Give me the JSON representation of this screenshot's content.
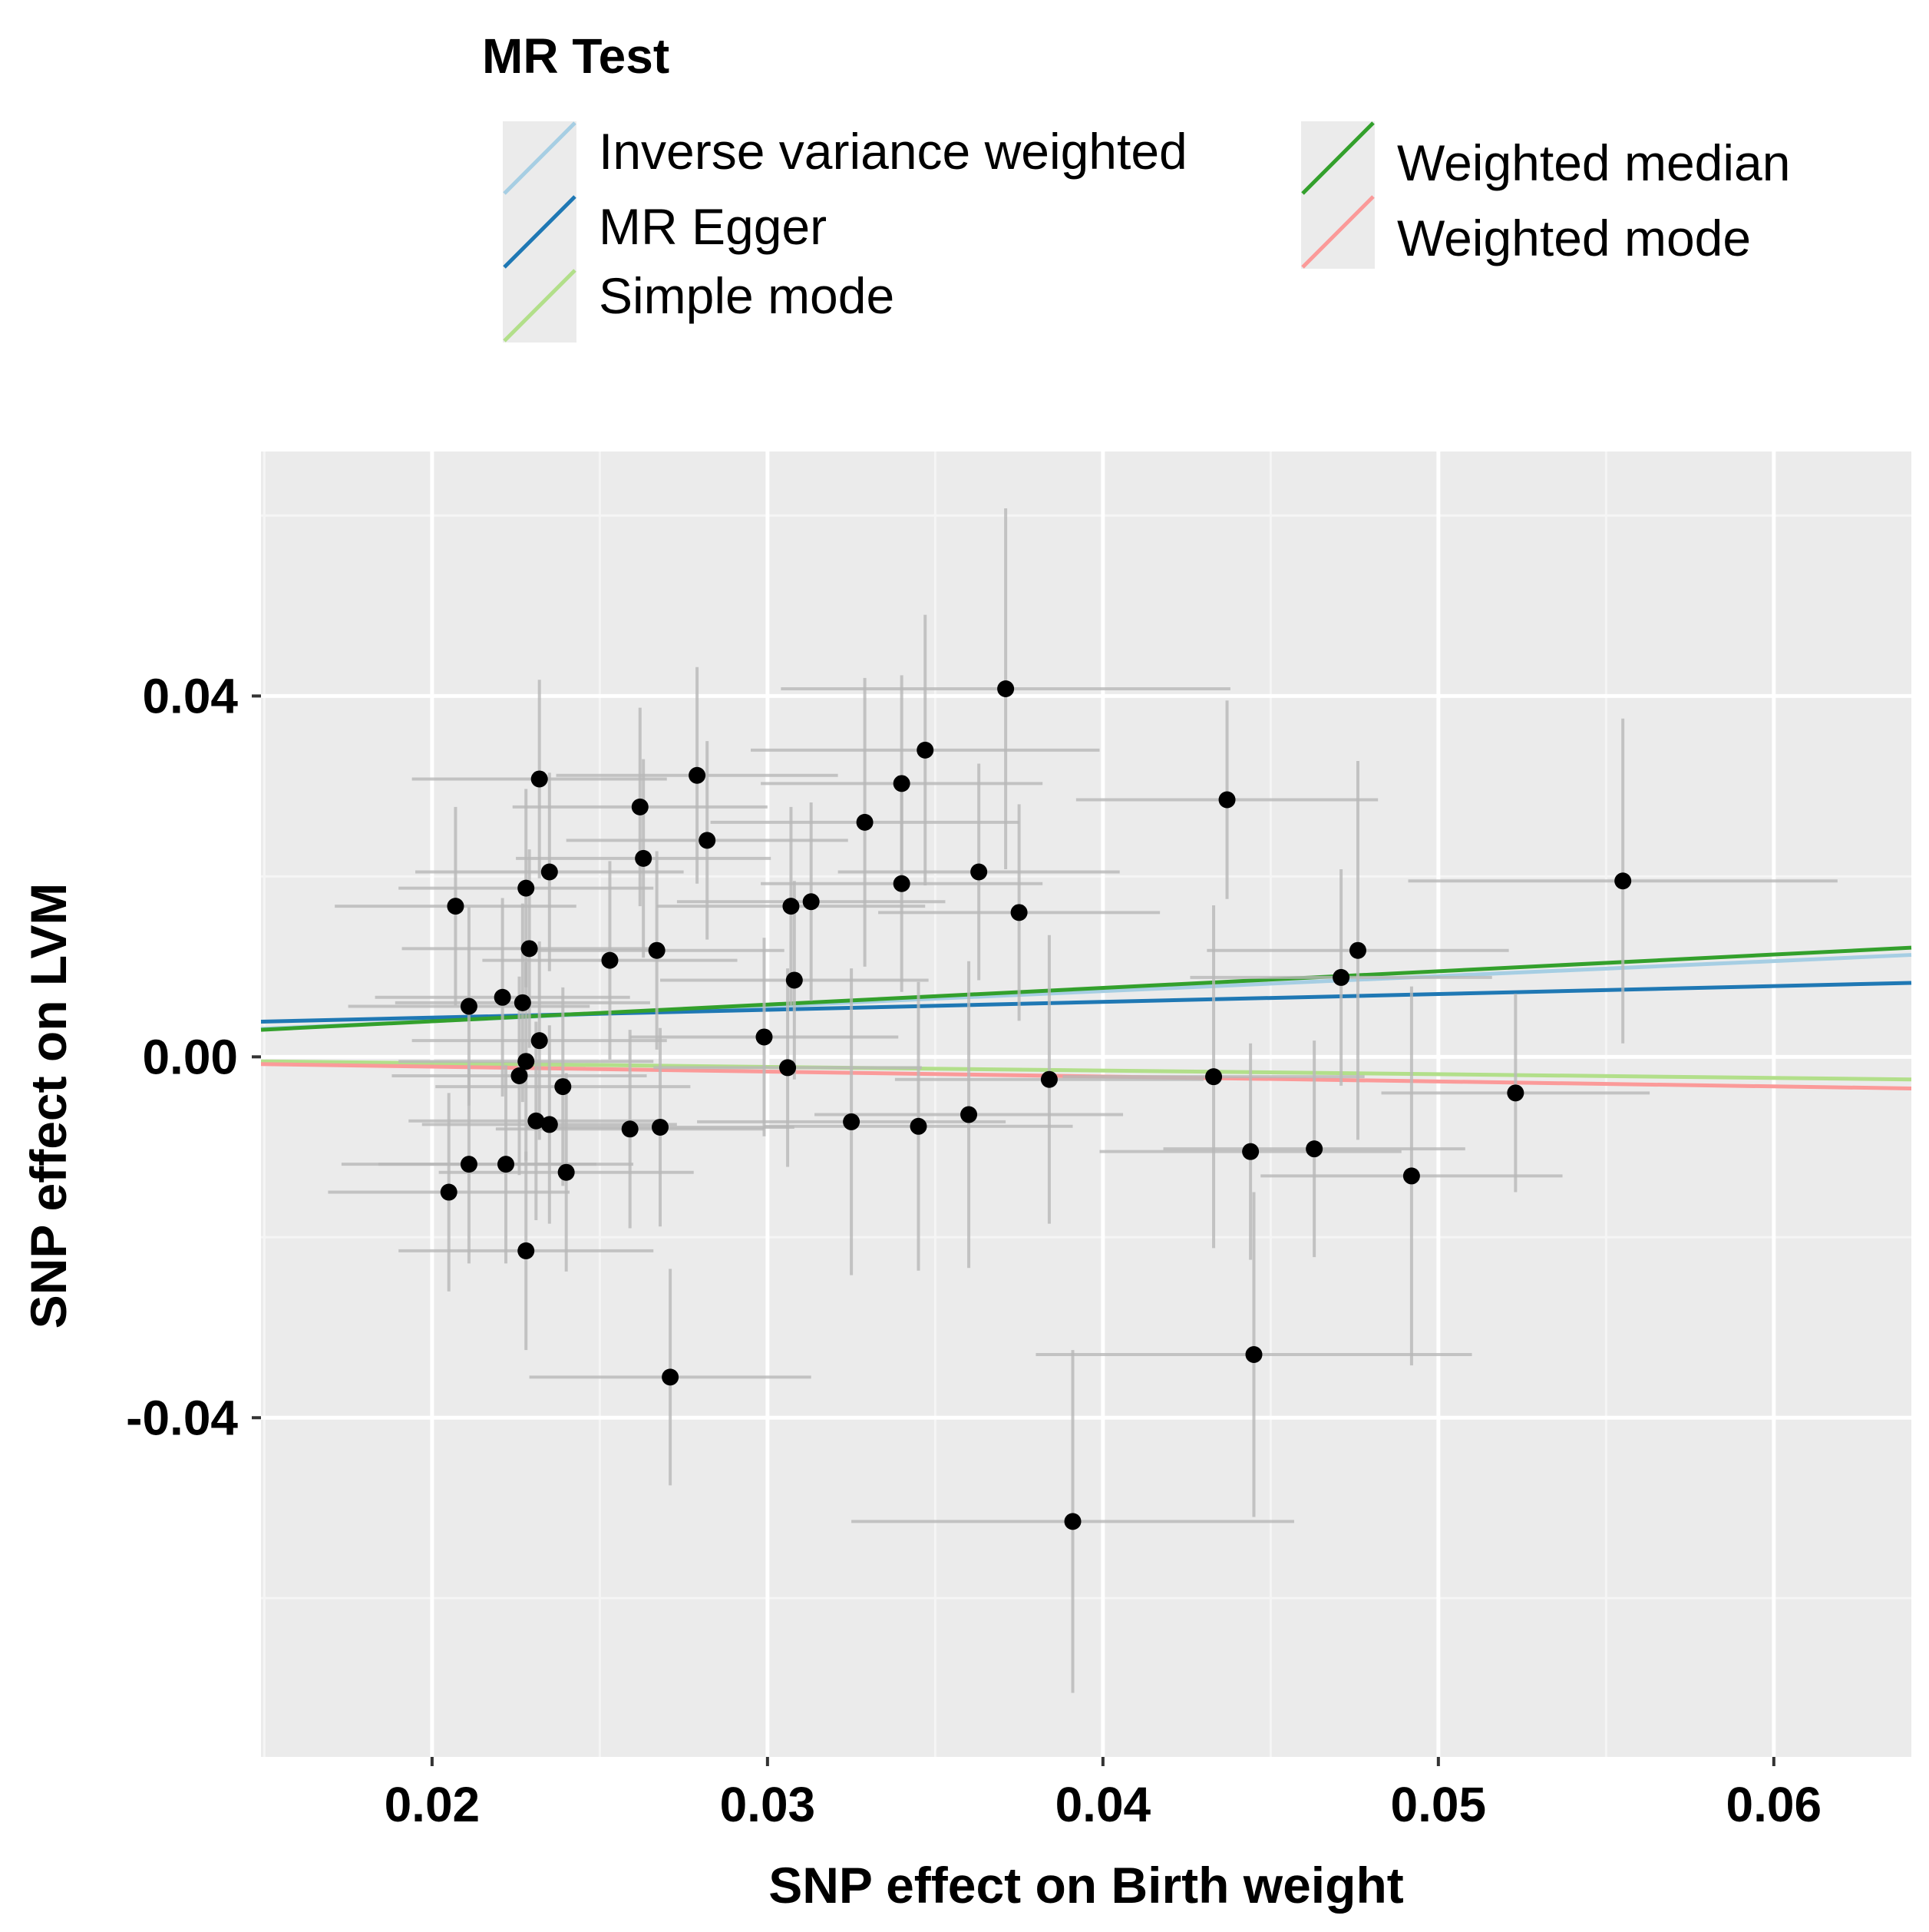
{
  "chart_data": {
    "type": "scatter",
    "xlabel": "SNP effect on Birth weight",
    "ylabel": "SNP effect on LVM",
    "xlim": [
      0.0149,
      0.0641
    ],
    "ylim": [
      -0.0776,
      0.0671
    ],
    "x_ticks": [
      0.02,
      0.03,
      0.04,
      0.05,
      0.06
    ],
    "x_tick_labels": [
      "0.02",
      "0.03",
      "0.04",
      "0.05",
      "0.06"
    ],
    "y_ticks": [
      0.04,
      0.0,
      -0.04
    ],
    "y_tick_labels": [
      "0.04",
      "0.00",
      "-0.04"
    ],
    "grid": true,
    "legend": {
      "title": "MR Test",
      "placement": "top",
      "entries": [
        {
          "name": "Inverse variance weighted",
          "color": "#a6cee3"
        },
        {
          "name": "MR Egger",
          "color": "#1f78b4"
        },
        {
          "name": "Simple mode",
          "color": "#b2df8a"
        },
        {
          "name": "Weighted median",
          "color": "#33a02c"
        },
        {
          "name": "Weighted mode",
          "color": "#fb9a99"
        }
      ]
    },
    "lines": [
      {
        "name": "Inverse variance weighted",
        "color": "#a6cee3",
        "x": [
          0.0149,
          0.0641
        ],
        "y": [
          0.0031,
          0.0113
        ]
      },
      {
        "name": "MR Egger",
        "color": "#1f78b4",
        "x": [
          0.0149,
          0.0641
        ],
        "y": [
          0.0039,
          0.0082
        ]
      },
      {
        "name": "Simple mode",
        "color": "#b2df8a",
        "x": [
          0.0149,
          0.0641
        ],
        "y": [
          -0.0005,
          -0.0025
        ]
      },
      {
        "name": "Weighted median",
        "color": "#33a02c",
        "x": [
          0.0149,
          0.0641
        ],
        "y": [
          0.003,
          0.0121
        ]
      },
      {
        "name": "Weighted mode",
        "color": "#fb9a99",
        "x": [
          0.0149,
          0.0641
        ],
        "y": [
          -0.0008,
          -0.0035
        ]
      }
    ],
    "points": [
      {
        "x": 0.0232,
        "y": 0.0308,
        "xerr": 0.0038,
        "yerr": 0.011
      },
      {
        "x": 0.0207,
        "y": 0.0167,
        "xerr": 0.0036,
        "yerr": 0.011
      },
      {
        "x": 0.0228,
        "y": 0.0187,
        "xerr": 0.0038,
        "yerr": 0.011
      },
      {
        "x": 0.0235,
        "y": 0.0205,
        "xerr": 0.004,
        "yerr": 0.011
      },
      {
        "x": 0.0229,
        "y": 0.012,
        "xerr": 0.0038,
        "yerr": 0.011
      },
      {
        "x": 0.0211,
        "y": 0.0056,
        "xerr": 0.0036,
        "yerr": 0.011
      },
      {
        "x": 0.0221,
        "y": 0.0066,
        "xerr": 0.0038,
        "yerr": 0.011
      },
      {
        "x": 0.0227,
        "y": 0.006,
        "xerr": 0.0038,
        "yerr": 0.011
      },
      {
        "x": 0.0232,
        "y": 0.0018,
        "xerr": 0.0038,
        "yerr": 0.011
      },
      {
        "x": 0.0228,
        "y": -0.0005,
        "xerr": 0.0038,
        "yerr": 0.011
      },
      {
        "x": 0.0226,
        "y": -0.0021,
        "xerr": 0.0038,
        "yerr": 0.011
      },
      {
        "x": 0.0239,
        "y": -0.0033,
        "xerr": 0.0038,
        "yerr": 0.011
      },
      {
        "x": 0.0231,
        "y": -0.0071,
        "xerr": 0.0038,
        "yerr": 0.011
      },
      {
        "x": 0.0235,
        "y": -0.0075,
        "xerr": 0.0038,
        "yerr": 0.011
      },
      {
        "x": 0.0211,
        "y": -0.0119,
        "xerr": 0.0038,
        "yerr": 0.011
      },
      {
        "x": 0.0222,
        "y": -0.0119,
        "xerr": 0.0038,
        "yerr": 0.011
      },
      {
        "x": 0.024,
        "y": -0.0128,
        "xerr": 0.0038,
        "yerr": 0.011
      },
      {
        "x": 0.0205,
        "y": -0.015,
        "xerr": 0.0036,
        "yerr": 0.011
      },
      {
        "x": 0.0228,
        "y": -0.0215,
        "xerr": 0.0038,
        "yerr": 0.011
      },
      {
        "x": 0.0262,
        "y": 0.0277,
        "xerr": 0.0038,
        "yerr": 0.011
      },
      {
        "x": 0.0263,
        "y": 0.022,
        "xerr": 0.0038,
        "yerr": 0.011
      },
      {
        "x": 0.0253,
        "y": 0.0107,
        "xerr": 0.0038,
        "yerr": 0.011
      },
      {
        "x": 0.0267,
        "y": 0.0118,
        "xerr": 0.0038,
        "yerr": 0.011
      },
      {
        "x": 0.0279,
        "y": 0.0312,
        "xerr": 0.0042,
        "yerr": 0.012
      },
      {
        "x": 0.0282,
        "y": 0.024,
        "xerr": 0.0042,
        "yerr": 0.011
      },
      {
        "x": 0.0259,
        "y": -0.008,
        "xerr": 0.004,
        "yerr": 0.011
      },
      {
        "x": 0.0268,
        "y": -0.0078,
        "xerr": 0.004,
        "yerr": 0.011
      },
      {
        "x": 0.0271,
        "y": -0.0355,
        "xerr": 0.0042,
        "yerr": 0.012
      },
      {
        "x": 0.0299,
        "y": 0.0022,
        "xerr": 0.004,
        "yerr": 0.011
      },
      {
        "x": 0.0306,
        "y": -0.0012,
        "xerr": 0.004,
        "yerr": 0.011
      },
      {
        "x": 0.0307,
        "y": 0.0167,
        "xerr": 0.004,
        "yerr": 0.011
      },
      {
        "x": 0.0313,
        "y": 0.0172,
        "xerr": 0.004,
        "yerr": 0.011
      },
      {
        "x": 0.0308,
        "y": 0.0085,
        "xerr": 0.004,
        "yerr": 0.011
      },
      {
        "x": 0.0329,
        "y": 0.026,
        "xerr": 0.0046,
        "yerr": 0.016
      },
      {
        "x": 0.034,
        "y": 0.0303,
        "xerr": 0.0042,
        "yerr": 0.012
      },
      {
        "x": 0.0347,
        "y": 0.034,
        "xerr": 0.0052,
        "yerr": 0.015
      },
      {
        "x": 0.034,
        "y": 0.0192,
        "xerr": 0.0042,
        "yerr": 0.012
      },
      {
        "x": 0.0363,
        "y": 0.0205,
        "xerr": 0.0042,
        "yerr": 0.012
      },
      {
        "x": 0.0371,
        "y": 0.0408,
        "xerr": 0.0067,
        "yerr": 0.02
      },
      {
        "x": 0.0375,
        "y": 0.016,
        "xerr": 0.0042,
        "yerr": 0.012
      },
      {
        "x": 0.0325,
        "y": -0.0072,
        "xerr": 0.0046,
        "yerr": 0.017
      },
      {
        "x": 0.0345,
        "y": -0.0077,
        "xerr": 0.0046,
        "yerr": 0.016
      },
      {
        "x": 0.036,
        "y": -0.0064,
        "xerr": 0.0046,
        "yerr": 0.017
      },
      {
        "x": 0.0384,
        "y": -0.0025,
        "xerr": 0.0046,
        "yerr": 0.016
      },
      {
        "x": 0.0391,
        "y": -0.0515,
        "xerr": 0.0066,
        "yerr": 0.019
      },
      {
        "x": 0.0437,
        "y": 0.0285,
        "xerr": 0.0045,
        "yerr": 0.011
      },
      {
        "x": 0.0433,
        "y": -0.0022,
        "xerr": 0.0045,
        "yerr": 0.019
      },
      {
        "x": 0.0444,
        "y": -0.0105,
        "xerr": 0.0045,
        "yerr": 0.012
      },
      {
        "x": 0.0445,
        "y": -0.033,
        "xerr": 0.0065,
        "yerr": 0.018
      },
      {
        "x": 0.0463,
        "y": -0.0102,
        "xerr": 0.0045,
        "yerr": 0.012
      },
      {
        "x": 0.0471,
        "y": 0.0088,
        "xerr": 0.0045,
        "yerr": 0.012
      },
      {
        "x": 0.0476,
        "y": 0.0118,
        "xerr": 0.0045,
        "yerr": 0.021
      },
      {
        "x": 0.0492,
        "y": -0.0132,
        "xerr": 0.0045,
        "yerr": 0.021
      },
      {
        "x": 0.0523,
        "y": -0.004,
        "xerr": 0.004,
        "yerr": 0.011
      },
      {
        "x": 0.0555,
        "y": 0.0195,
        "xerr": 0.0064,
        "yerr": 0.018
      }
    ]
  }
}
